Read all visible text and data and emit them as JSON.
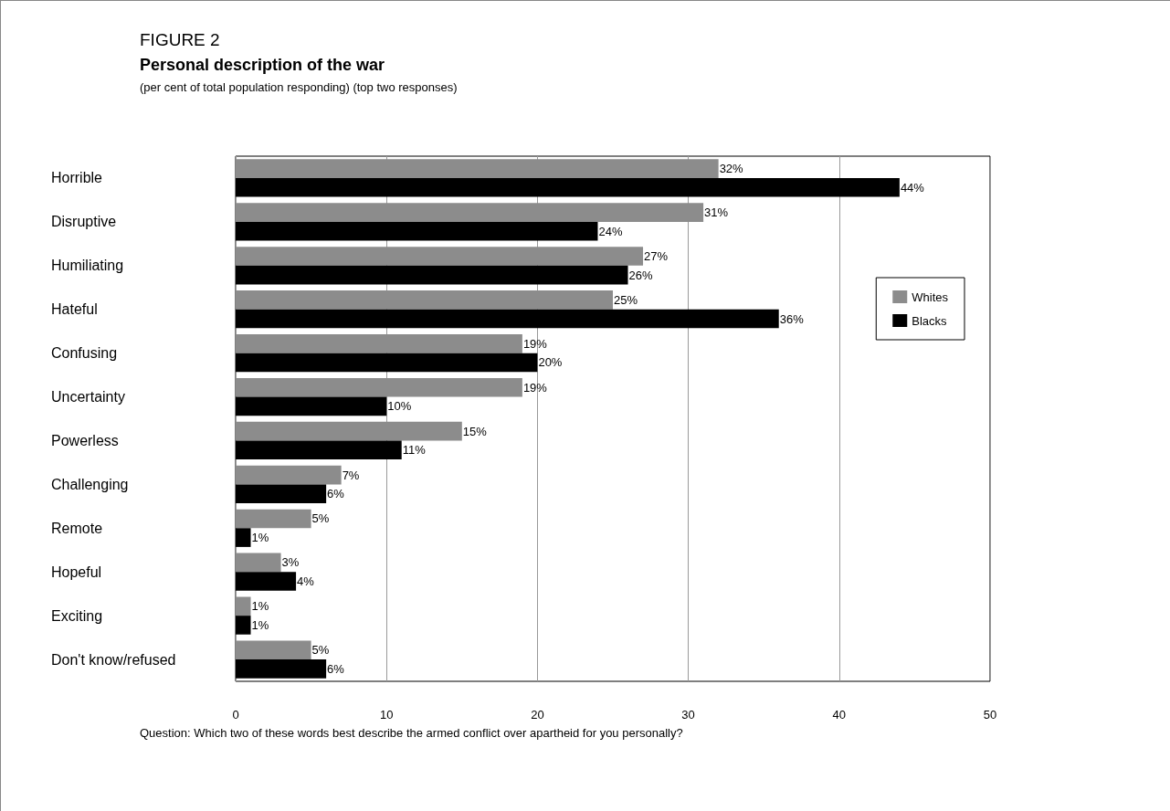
{
  "chart_data": {
    "type": "bar",
    "orientation": "horizontal",
    "title": "Personal description of the war",
    "subtitle": "(per cent of total population responding) (top two responses)",
    "categories": [
      "Horrible",
      "Disruptive",
      "Humiliating",
      "Hateful",
      "Confusing",
      "Uncertainty",
      "Powerless",
      "Challenging",
      "Remote",
      "Hopeful",
      "Exciting",
      "Don't know/refused"
    ],
    "series": [
      {
        "name": "Whites",
        "color": "#8c8c8c",
        "values": [
          32,
          31,
          27,
          25,
          19,
          19,
          15,
          7,
          5,
          3,
          1,
          5
        ],
        "value_labels": [
          "32%",
          "31%",
          "27%",
          "25%",
          "19%",
          "19%",
          "15%",
          "7%",
          "5%",
          "3%",
          "1%",
          "5%"
        ]
      },
      {
        "name": "Blacks",
        "color": "#000000",
        "values": [
          44,
          24,
          26,
          36,
          20,
          10,
          11,
          6,
          1,
          4,
          1,
          6
        ],
        "value_labels": [
          "44%",
          "24%",
          "26%",
          "36%",
          "20%",
          "10%",
          "11%",
          "6%",
          "1%",
          "4%",
          "1%",
          "6%"
        ]
      }
    ],
    "xlim": [
      0,
      50
    ],
    "xticks": [
      0,
      10,
      20,
      30,
      40,
      50
    ],
    "grid": "x",
    "legend": "right",
    "annotations": [
      "FIGURE 2",
      "Question: Which two of these words best describe the armed conflict over apartheid for you personally?"
    ]
  }
}
